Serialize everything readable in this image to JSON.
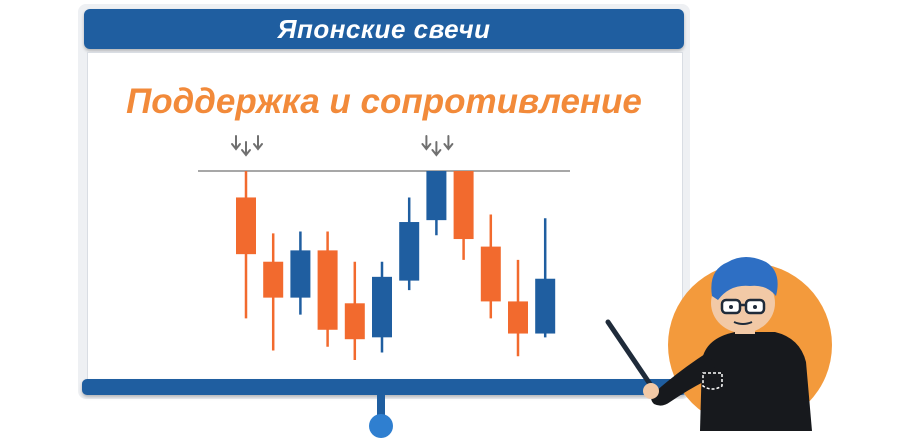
{
  "title": "Японские свечи",
  "subtitle": "Поддержка и сопротивление",
  "colors": {
    "accent_blue": "#1f5ea0",
    "bearish": "#f26a2e",
    "bullish": "#1f5ea0",
    "subtitle": "#f28a3a",
    "resistance_line": "#8a8a8a",
    "arrow": "#707070",
    "presenter_bg": "#f39a3c"
  },
  "icons": [
    "down-arrow-icon",
    "presenter-icon",
    "pointer-stick-icon"
  ],
  "chart_data": {
    "type": "candlestick",
    "resistance_level": 100,
    "ylim": [
      0,
      110
    ],
    "candles": [
      {
        "direction": "down",
        "open": 86,
        "close": 56,
        "high": 100,
        "low": 22
      },
      {
        "direction": "down",
        "open": 52,
        "close": 33,
        "high": 67,
        "low": 5
      },
      {
        "direction": "up",
        "open": 33,
        "close": 58,
        "high": 68,
        "low": 24
      },
      {
        "direction": "down",
        "open": 58,
        "close": 16,
        "high": 68,
        "low": 7
      },
      {
        "direction": "down",
        "open": 30,
        "close": 11,
        "high": 52,
        "low": 0
      },
      {
        "direction": "up",
        "open": 12,
        "close": 44,
        "high": 52,
        "low": 4
      },
      {
        "direction": "up",
        "open": 42,
        "close": 73,
        "high": 86,
        "low": 37
      },
      {
        "direction": "up",
        "open": 74,
        "close": 100,
        "high": 100,
        "low": 66
      },
      {
        "direction": "down",
        "open": 100,
        "close": 64,
        "high": 100,
        "low": 53
      },
      {
        "direction": "down",
        "open": 60,
        "close": 31,
        "high": 77,
        "low": 22
      },
      {
        "direction": "down",
        "open": 31,
        "close": 14,
        "high": 53,
        "low": 2
      },
      {
        "direction": "up",
        "open": 14,
        "close": 43,
        "high": 75,
        "low": 12
      }
    ],
    "arrow_groups": [
      {
        "candle_index": 0,
        "count": 3
      },
      {
        "candle_index": 7,
        "count": 3
      }
    ]
  }
}
